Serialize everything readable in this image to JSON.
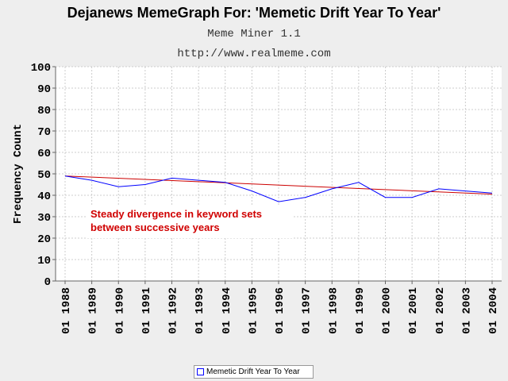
{
  "chart_data": {
    "type": "line",
    "title": "Dejanews MemeGraph For: 'Memetic Drift Year To Year'",
    "subtitle": "Meme Miner 1.1",
    "subtitle2": "http://www.realmeme.com",
    "xlabel": "",
    "ylabel": "Frequency Count",
    "ylim": [
      0,
      100
    ],
    "yticks": [
      0,
      10,
      20,
      30,
      40,
      50,
      60,
      70,
      80,
      90,
      100
    ],
    "categories": [
      "01 1988",
      "01 1989",
      "01 1990",
      "01 1991",
      "01 1992",
      "01 1993",
      "01 1994",
      "01 1995",
      "01 1996",
      "01 1997",
      "01 1998",
      "01 1999",
      "01 2000",
      "01 2001",
      "01 2002",
      "01 2003",
      "01 2004"
    ],
    "series": [
      {
        "name": "Memetic Drift Year To Year",
        "color": "#0000ff",
        "values": [
          49,
          47,
          44,
          45,
          48,
          47,
          46,
          42,
          37,
          39,
          43,
          46,
          39,
          39,
          43,
          42,
          41
        ]
      }
    ],
    "trendline": {
      "color": "#cc0000",
      "start": 49,
      "end": 40.5
    },
    "annotation": [
      "Steady divergence in keyword sets",
      "between successive years"
    ],
    "grid": true,
    "legend_position": "bottom-center",
    "colors": {
      "background": "#eeeeee",
      "plot_background": "#ffffff",
      "grid": "#cccccc"
    }
  }
}
